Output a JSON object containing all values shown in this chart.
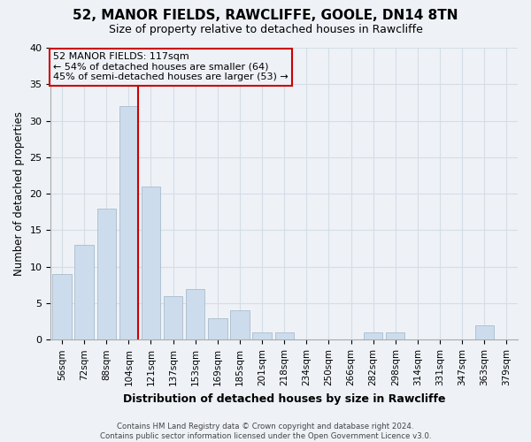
{
  "title": "52, MANOR FIELDS, RAWCLIFFE, GOOLE, DN14 8TN",
  "subtitle": "Size of property relative to detached houses in Rawcliffe",
  "xlabel": "Distribution of detached houses by size in Rawcliffe",
  "ylabel": "Number of detached properties",
  "footer_line1": "Contains HM Land Registry data © Crown copyright and database right 2024.",
  "footer_line2": "Contains public sector information licensed under the Open Government Licence v3.0.",
  "bar_labels": [
    "56sqm",
    "72sqm",
    "88sqm",
    "104sqm",
    "121sqm",
    "137sqm",
    "153sqm",
    "169sqm",
    "185sqm",
    "201sqm",
    "218sqm",
    "234sqm",
    "250sqm",
    "266sqm",
    "282sqm",
    "298sqm",
    "314sqm",
    "331sqm",
    "347sqm",
    "363sqm",
    "379sqm"
  ],
  "bar_values": [
    9,
    13,
    18,
    32,
    21,
    6,
    7,
    3,
    4,
    1,
    1,
    0,
    0,
    0,
    1,
    1,
    0,
    0,
    0,
    2,
    0
  ],
  "bar_color": "#ccdcec",
  "bar_edge_color": "#aabbcc",
  "vline_color": "#cc0000",
  "vline_bar_index": 3,
  "ann_line1": "52 MANOR FIELDS: 117sqm",
  "ann_line2": "← 54% of detached houses are smaller (64)",
  "ann_line3": "45% of semi-detached houses are larger (53) →",
  "ylim": [
    0,
    40
  ],
  "yticks": [
    0,
    5,
    10,
    15,
    20,
    25,
    30,
    35,
    40
  ],
  "grid_color": "#d4dde6",
  "background_color": "#eef2f7",
  "plot_bg_color": "#eef2f7",
  "box_edge_color": "#cc0000",
  "title_fontsize": 11,
  "subtitle_fontsize": 9
}
